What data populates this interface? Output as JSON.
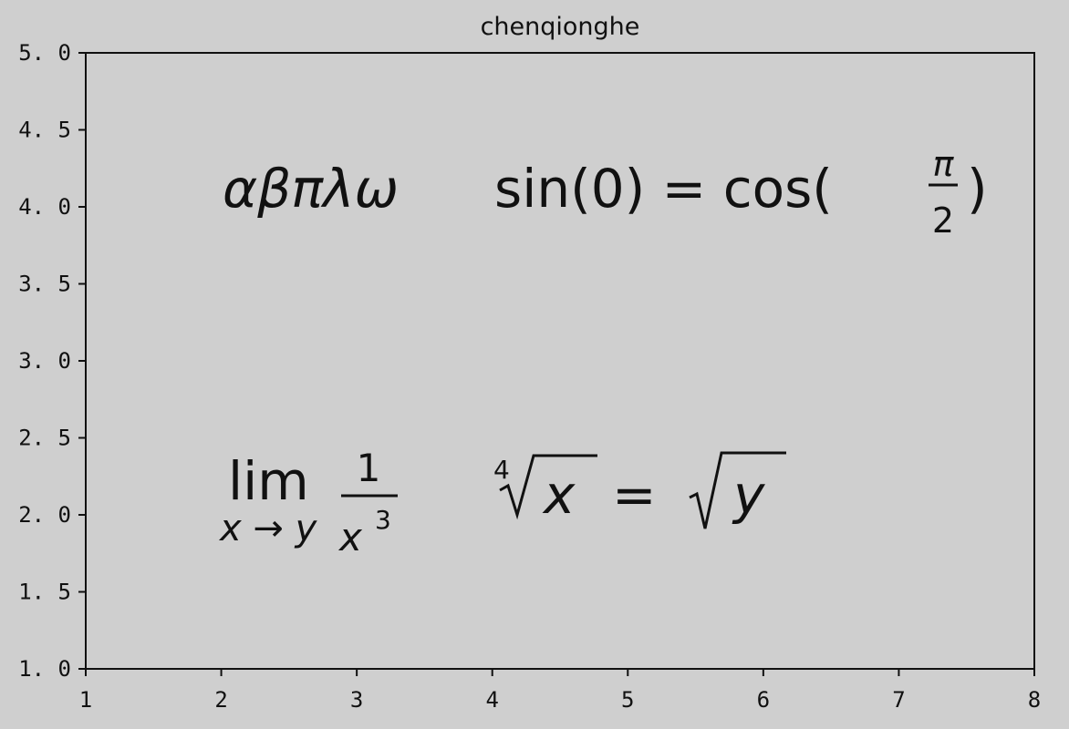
{
  "chart_data": {
    "type": "scatter",
    "title": "chenqionghe",
    "xlabel": "",
    "ylabel": "",
    "xlim": [
      1,
      8
    ],
    "ylim": [
      1.0,
      5.0
    ],
    "xticks": [
      "1",
      "2",
      "3",
      "4",
      "5",
      "6",
      "7",
      "8"
    ],
    "yticks": [
      "1. 0",
      "1. 5",
      "2. 0",
      "2. 5",
      "3. 0",
      "3. 5",
      "4. 0",
      "4. 5",
      "5. 0"
    ],
    "grid": false,
    "annotations": [
      {
        "x": 2,
        "y": 4,
        "greek": "αβπλω",
        "equation_left": "sin(0) = cos(",
        "frac_numerator": "π",
        "frac_denominator": "2",
        "equation_right": ")"
      },
      {
        "x": 2,
        "y": 2,
        "limit_word": "lim",
        "limit_subscript": "x → y",
        "frac_numerator": "1",
        "frac_denominator_base": "x",
        "frac_denominator_exp": "3",
        "root_index": "4",
        "radicand_left": "x",
        "equals": "=",
        "radicand_right": "y"
      }
    ]
  }
}
